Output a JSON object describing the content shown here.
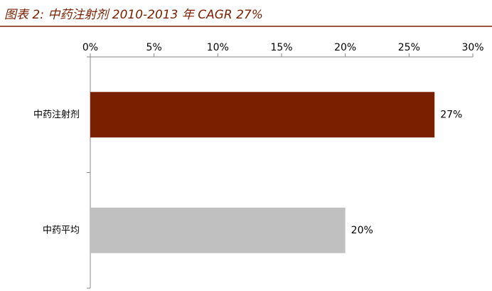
{
  "chart_data": {
    "type": "hbar",
    "title": "图表 2:  中药注射剂 2010-2013 年 CAGR 27%",
    "categories": [
      "中药注射剂",
      "中药平均"
    ],
    "values": [
      27,
      20
    ],
    "value_labels": [
      "27%",
      "20%"
    ],
    "colors": [
      "#7a1f00",
      "#c0c0c0"
    ],
    "xlim": [
      0,
      30
    ],
    "xticks": [
      {
        "value": 0,
        "label": "0%"
      },
      {
        "value": 5,
        "label": "5%"
      },
      {
        "value": 10,
        "label": "10%"
      },
      {
        "value": 15,
        "label": "15%"
      },
      {
        "value": 20,
        "label": "20%"
      },
      {
        "value": 25,
        "label": "25%"
      },
      {
        "value": 30,
        "label": "30%"
      }
    ],
    "grid": false
  }
}
